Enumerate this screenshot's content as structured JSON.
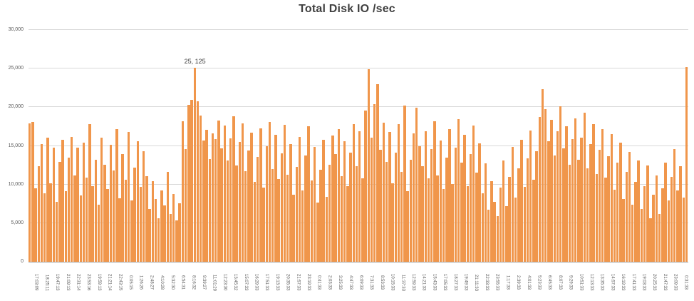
{
  "chart_data": {
    "type": "bar",
    "title": "Total Disk IO /sec",
    "xlabel": "",
    "ylabel": "",
    "ylim": [
      0,
      30000
    ],
    "grid": true,
    "legend_position": "none",
    "y_ticks": [
      "0",
      "5,000",
      "10,000",
      "15,000",
      "20,000",
      "25,000",
      "30,000"
    ],
    "x_tick_labels": [
      "17:03:09",
      "18:25:11",
      "19:47:13",
      "21:09:13",
      "22:31:14",
      "23:53:16",
      "19:59:13",
      "21:21:14",
      "22:43:15",
      "0:05:15",
      "1:26:26",
      "2:48:27",
      "4:10:28",
      "5:32:30",
      "6:54:31",
      "8:16:32",
      "9:39:27",
      "11:01:29",
      "12:23:30",
      "13:45:32",
      "15:07:33",
      "16:29:33",
      "17:51:33",
      "19:13:33",
      "20:35:33",
      "21:57:33",
      "23:19:33",
      "0:41:33",
      "2:03:33",
      "3:25:33",
      "4:47:33",
      "6:09:33",
      "7:31:33",
      "8:53:33",
      "10:15:33",
      "11:37:33",
      "12:59:33",
      "14:21:33",
      "15:43:33",
      "17:05:33",
      "18:27:33",
      "19:49:33",
      "21:11:33",
      "22:33:33",
      "23:55:33",
      "1:17:33",
      "2:39:33",
      "4:01:33",
      "5:23:33",
      "6:45:33",
      "8:07:33",
      "9:29:33",
      "10:51:33",
      "12:13:33",
      "13:35:33",
      "14:57:33",
      "16:19:33",
      "17:41:33",
      "19:03:33",
      "20:25:33",
      "21:47:33",
      "23:09:33",
      "0:31:33"
    ],
    "values": [
      17900,
      18100,
      9500,
      12400,
      15200,
      8900,
      16100,
      10200,
      14800,
      7800,
      12900,
      15800,
      9100,
      13500,
      16200,
      11200,
      14800,
      8600,
      15400,
      10900,
      17800,
      9800,
      13200,
      7400,
      16100,
      12600,
      9400,
      15100,
      11800,
      17200,
      8200,
      13900,
      10600,
      16800,
      7900,
      12200,
      15600,
      9700,
      14300,
      11100,
      6800,
      10400,
      8100,
      5600,
      9200,
      7300,
      11600,
      6200,
      8800,
      5400,
      7600,
      18200,
      14600,
      20300,
      21000,
      25125,
      20800,
      18900,
      15700,
      17100,
      13300,
      16600,
      15900,
      18300,
      14700,
      17600,
      13100,
      16000,
      18800,
      12500,
      15500,
      17900,
      11700,
      14400,
      16700,
      10300,
      13600,
      17300,
      9600,
      15000,
      18100,
      12000,
      16400,
      10700,
      14000,
      17700,
      11300,
      15200,
      8700,
      12300,
      16200,
      9200,
      13800,
      17500,
      10500,
      14900,
      7700,
      11900,
      15800,
      8400,
      12600,
      16300,
      13900,
      17200,
      11100,
      15600,
      9800,
      14100,
      17800,
      12400,
      16900,
      10800,
      19600,
      24900,
      16100,
      20400,
      23000,
      14500,
      18000,
      12900,
      16800,
      10200,
      14100,
      17800,
      11600,
      20200,
      9100,
      13200,
      16600,
      19900,
      15000,
      12400,
      16900,
      10800,
      14600,
      18200,
      11200,
      15700,
      9400,
      13500,
      17200,
      10100,
      14800,
      18500,
      12800,
      16400,
      9800,
      13900,
      17600,
      11500,
      15300,
      8900,
      12700,
      6700,
      10400,
      7800,
      5900,
      9600,
      13100,
      7200,
      11000,
      14900,
      8300,
      12100,
      15800,
      9700,
      13400,
      17000,
      10600,
      14300,
      18700,
      22300,
      19800,
      15600,
      18400,
      13800,
      16900,
      20100,
      14700,
      17500,
      12600,
      15900,
      18600,
      13200,
      16100,
      19300,
      12100,
      15200,
      17800,
      11400,
      14500,
      17200,
      10900,
      13700,
      16500,
      9300,
      12800,
      15400,
      8100,
      11600,
      14200,
      7400,
      10300,
      13100,
      6800,
      9800,
      12500,
      5600,
      8700,
      11200,
      6200,
      9500,
      12800,
      7900,
      11000,
      14600,
      9200,
      12400,
      8300,
      25200
    ],
    "annotation": {
      "text": "25, 125",
      "index": 55,
      "value": 25125
    },
    "colors": {
      "bar": "#F0964B",
      "gridline": "#D9D9D9",
      "axis_line": "#A6A6A6",
      "title": "#3F3F3F",
      "tick_label": "#595959"
    }
  }
}
